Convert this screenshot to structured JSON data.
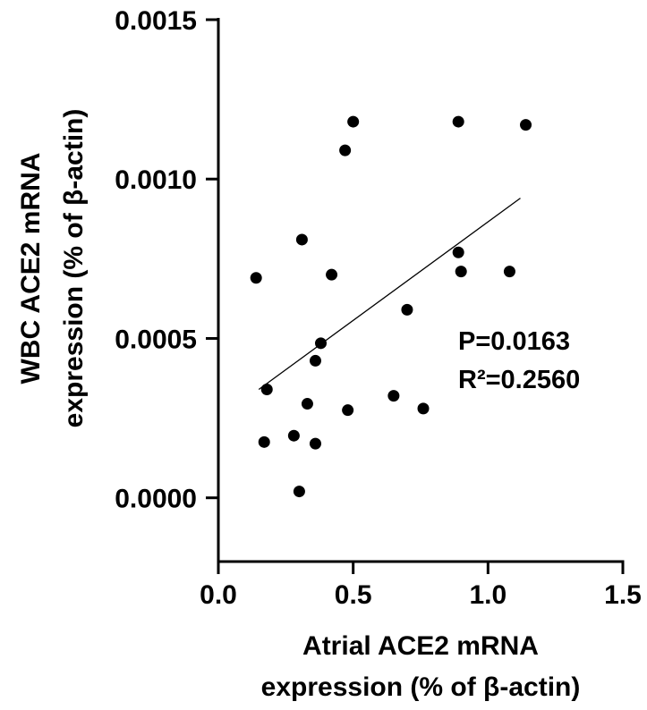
{
  "chart_data": {
    "type": "scatter",
    "title": "",
    "xlabel_lines": [
      "Atrial ACE2 mRNA",
      "expression (% of β-actin)"
    ],
    "ylabel_lines": [
      "WBC ACE2 mRNA",
      "expression (% of β-actin)"
    ],
    "xlim": [
      0.0,
      1.5
    ],
    "ylim": [
      -0.0002,
      0.0015
    ],
    "x_ticks": [
      "0.0",
      "0.5",
      "1.0",
      "1.5"
    ],
    "y_ticks": [
      "0.0000",
      "0.0005",
      "0.0010",
      "0.0015"
    ],
    "grid": false,
    "points": [
      {
        "x": 0.14,
        "y": 0.00069
      },
      {
        "x": 0.17,
        "y": 0.000175
      },
      {
        "x": 0.18,
        "y": 0.00034
      },
      {
        "x": 0.28,
        "y": 0.000195
      },
      {
        "x": 0.3,
        "y": 2e-05
      },
      {
        "x": 0.31,
        "y": 0.00081
      },
      {
        "x": 0.33,
        "y": 0.000295
      },
      {
        "x": 0.36,
        "y": 0.00017
      },
      {
        "x": 0.36,
        "y": 0.00043
      },
      {
        "x": 0.38,
        "y": 0.000485
      },
      {
        "x": 0.42,
        "y": 0.0007
      },
      {
        "x": 0.47,
        "y": 0.00109
      },
      {
        "x": 0.48,
        "y": 0.000275
      },
      {
        "x": 0.5,
        "y": 0.00118
      },
      {
        "x": 0.65,
        "y": 0.00032
      },
      {
        "x": 0.7,
        "y": 0.00059
      },
      {
        "x": 0.76,
        "y": 0.00028
      },
      {
        "x": 0.89,
        "y": 0.00118
      },
      {
        "x": 0.89,
        "y": 0.00077
      },
      {
        "x": 0.9,
        "y": 0.00071
      },
      {
        "x": 1.08,
        "y": 0.00071
      },
      {
        "x": 1.14,
        "y": 0.00117
      }
    ],
    "trendline": {
      "x": [
        0.15,
        1.12
      ],
      "y": [
        0.00034,
        0.00094
      ]
    },
    "annotations": [
      "P=0.0163",
      "R²=0.2560"
    ]
  }
}
